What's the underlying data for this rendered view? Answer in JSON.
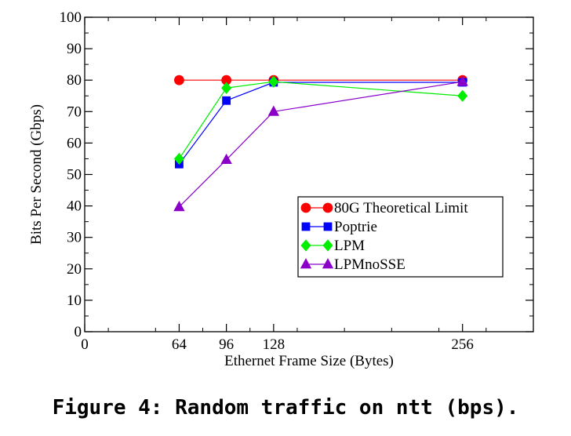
{
  "chart_data": {
    "type": "line",
    "title": "",
    "xlabel": "Ethernet Frame Size (Bytes)",
    "ylabel": "Bits Per Second (Gbps)",
    "xlim": [
      0,
      304
    ],
    "ylim": [
      0,
      100
    ],
    "x_ticks": [
      0,
      64,
      96,
      128,
      256
    ],
    "y_ticks": [
      0,
      10,
      20,
      30,
      40,
      50,
      60,
      70,
      80,
      90,
      100
    ],
    "grid": false,
    "legend_position": "lower-right",
    "series": [
      {
        "name": "80G Theoretical Limit",
        "marker": "circle",
        "color": "#ff0000",
        "x": [
          64,
          96,
          128,
          256
        ],
        "y": [
          80,
          80,
          80,
          80
        ]
      },
      {
        "name": "Poptrie",
        "marker": "square",
        "color": "#0000ff",
        "x": [
          64,
          96,
          128,
          256
        ],
        "y": [
          53.3,
          73.5,
          79.3,
          79.3
        ]
      },
      {
        "name": "LPM",
        "marker": "diamond",
        "color": "#00ee00",
        "x": [
          64,
          96,
          128,
          256
        ],
        "y": [
          55,
          77.5,
          79.5,
          75
        ]
      },
      {
        "name": "LPMnoSSE",
        "marker": "triangle",
        "color": "#8a00c8",
        "x": [
          64,
          96,
          128,
          256
        ],
        "y": [
          39.7,
          54.7,
          70,
          79.5
        ]
      }
    ]
  },
  "caption": "Figure 4: Random traffic on ntt (bps)."
}
